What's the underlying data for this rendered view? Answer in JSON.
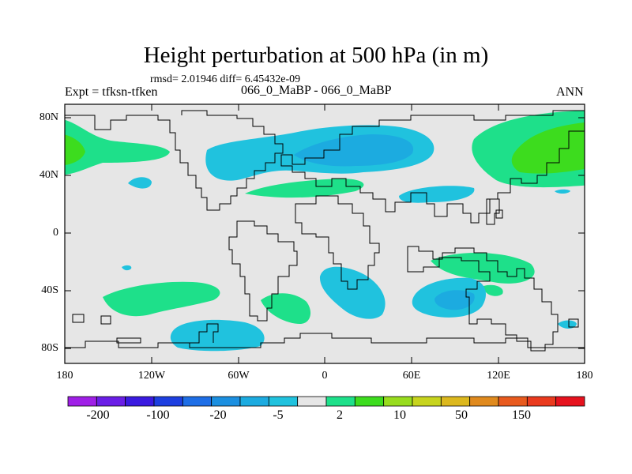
{
  "title": "Height perturbation at 500 hPa (in m)",
  "stats": "rmsd= 2.01946 diff= 6.45432e-09",
  "left_label": "Expt = tfksn-tfken",
  "center_label": "066_0_MaBP - 066_0_MaBP",
  "right_label": "ANN",
  "lat_labels": [
    "80N",
    "40N",
    "0",
    "40S",
    "80S"
  ],
  "lon_labels": [
    "180",
    "120W",
    "60W",
    "0",
    "60E",
    "120E",
    "180"
  ],
  "colorbar": {
    "colors": [
      "#9f1fe6",
      "#6a1ee6",
      "#3a1ae0",
      "#1d3fe0",
      "#1e6ee6",
      "#1b8fe0",
      "#1cabe0",
      "#20c2de",
      "#e6e6e6",
      "#1ee08a",
      "#3ddc1e",
      "#98dc1e",
      "#c7d41e",
      "#dcb81e",
      "#e08a1e",
      "#e85a1e",
      "#ea3a1e",
      "#e6121e"
    ],
    "labels": [
      "-200",
      "-100",
      "-20",
      "-5",
      "2",
      "10",
      "50",
      "150"
    ]
  },
  "palette": {
    "background": "#e6e6e6",
    "negative_light": "#20c2de",
    "negative_mid": "#1cabe0",
    "positive_light": "#1ee08a",
    "positive_mid": "#3ddc1e"
  }
}
